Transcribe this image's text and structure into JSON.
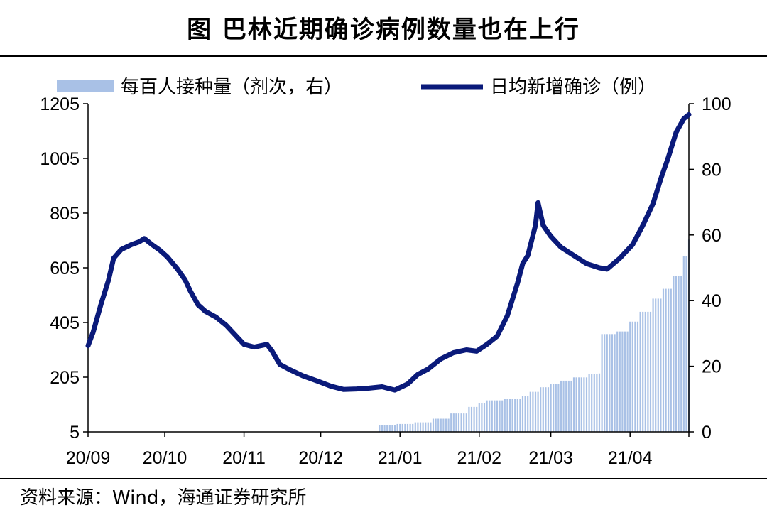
{
  "header": {
    "title": "图  巴林近期确诊病例数量也在上行"
  },
  "footer": {
    "source": "资料来源：Wind，海通证券研究所"
  },
  "colors": {
    "line": "#0a1a7a",
    "bar": "#a9c1e6",
    "axis": "#000000"
  },
  "chart_data": {
    "type": "line",
    "title": "图  巴林近期确诊病例数量也在上行",
    "legend_placement": "top",
    "grid": false,
    "x_labels": [
      "20/09",
      "20/10",
      "20/11",
      "20/12",
      "21/01",
      "21/02",
      "21/03",
      "21/04"
    ],
    "x_range": [
      "2020-09-01",
      "2021-04-24"
    ],
    "y_left": {
      "ticks": [
        5,
        205,
        405,
        605,
        805,
        1005,
        1205
      ],
      "range": [
        5,
        1205
      ]
    },
    "y_right": {
      "ticks": [
        0,
        20,
        40,
        60,
        80,
        100
      ],
      "range": [
        0,
        100
      ]
    },
    "series": [
      {
        "name": "每百人接种量（剂次，右）",
        "type": "bar",
        "axis": "right",
        "points": [
          [
            "2020-12-24",
            2.0
          ],
          [
            "2020-12-31",
            2.4
          ],
          [
            "2021-01-07",
            2.9
          ],
          [
            "2021-01-14",
            4.0
          ],
          [
            "2021-01-21",
            5.6
          ],
          [
            "2021-01-28",
            7.6
          ],
          [
            "2021-02-01",
            8.8
          ],
          [
            "2021-02-04",
            9.6
          ],
          [
            "2021-02-11",
            10.1
          ],
          [
            "2021-02-18",
            11.0
          ],
          [
            "2021-02-21",
            12.2
          ],
          [
            "2021-02-25",
            13.6
          ],
          [
            "2021-03-01",
            14.6
          ],
          [
            "2021-03-05",
            15.6
          ],
          [
            "2021-03-10",
            16.6
          ],
          [
            "2021-03-16",
            17.6
          ],
          [
            "2021-03-20",
            17.8
          ],
          [
            "2021-03-21",
            29.8
          ],
          [
            "2021-03-27",
            30.6
          ],
          [
            "2021-04-01",
            33.6
          ],
          [
            "2021-04-05",
            36.6
          ],
          [
            "2021-04-10",
            40.6
          ],
          [
            "2021-04-14",
            43.6
          ],
          [
            "2021-04-18",
            47.6
          ],
          [
            "2021-04-22",
            53.6
          ],
          [
            "2021-04-24",
            58.6
          ]
        ]
      },
      {
        "name": "日均新增确诊（例）",
        "type": "line",
        "axis": "left",
        "points": [
          [
            "2020-09-01",
            320
          ],
          [
            "2020-09-03",
            370
          ],
          [
            "2020-09-06",
            470
          ],
          [
            "2020-09-09",
            560
          ],
          [
            "2020-09-11",
            640
          ],
          [
            "2020-09-14",
            672
          ],
          [
            "2020-09-18",
            690
          ],
          [
            "2020-09-21",
            700
          ],
          [
            "2020-09-23",
            712
          ],
          [
            "2020-09-26",
            690
          ],
          [
            "2020-09-29",
            670
          ],
          [
            "2020-10-02",
            645
          ],
          [
            "2020-10-06",
            600
          ],
          [
            "2020-10-09",
            560
          ],
          [
            "2020-10-11",
            520
          ],
          [
            "2020-10-14",
            470
          ],
          [
            "2020-10-17",
            445
          ],
          [
            "2020-10-21",
            425
          ],
          [
            "2020-10-25",
            395
          ],
          [
            "2020-10-29",
            355
          ],
          [
            "2020-11-01",
            325
          ],
          [
            "2020-11-05",
            315
          ],
          [
            "2020-11-10",
            325
          ],
          [
            "2020-11-12",
            300
          ],
          [
            "2020-11-15",
            252
          ],
          [
            "2020-11-19",
            232
          ],
          [
            "2020-11-24",
            210
          ],
          [
            "2020-11-30",
            190
          ],
          [
            "2020-12-05",
            172
          ],
          [
            "2020-12-10",
            160
          ],
          [
            "2020-12-15",
            162
          ],
          [
            "2020-12-20",
            165
          ],
          [
            "2020-12-25",
            170
          ],
          [
            "2020-12-30",
            158
          ],
          [
            "2021-01-04",
            180
          ],
          [
            "2021-01-08",
            215
          ],
          [
            "2021-01-12",
            235
          ],
          [
            "2021-01-17",
            272
          ],
          [
            "2021-01-22",
            295
          ],
          [
            "2021-01-27",
            305
          ],
          [
            "2021-01-31",
            300
          ],
          [
            "2021-02-04",
            325
          ],
          [
            "2021-02-08",
            355
          ],
          [
            "2021-02-12",
            430
          ],
          [
            "2021-02-16",
            550
          ],
          [
            "2021-02-18",
            620
          ],
          [
            "2021-02-20",
            650
          ],
          [
            "2021-02-23",
            760
          ],
          [
            "2021-02-24",
            843
          ],
          [
            "2021-02-26",
            760
          ],
          [
            "2021-03-01",
            720
          ],
          [
            "2021-03-05",
            680
          ],
          [
            "2021-03-10",
            650
          ],
          [
            "2021-03-15",
            620
          ],
          [
            "2021-03-20",
            605
          ],
          [
            "2021-03-23",
            600
          ],
          [
            "2021-03-28",
            640
          ],
          [
            "2021-04-02",
            690
          ],
          [
            "2021-04-06",
            760
          ],
          [
            "2021-04-10",
            840
          ],
          [
            "2021-04-13",
            930
          ],
          [
            "2021-04-16",
            1010
          ],
          [
            "2021-04-19",
            1100
          ],
          [
            "2021-04-22",
            1150
          ],
          [
            "2021-04-24",
            1165
          ]
        ]
      }
    ]
  }
}
